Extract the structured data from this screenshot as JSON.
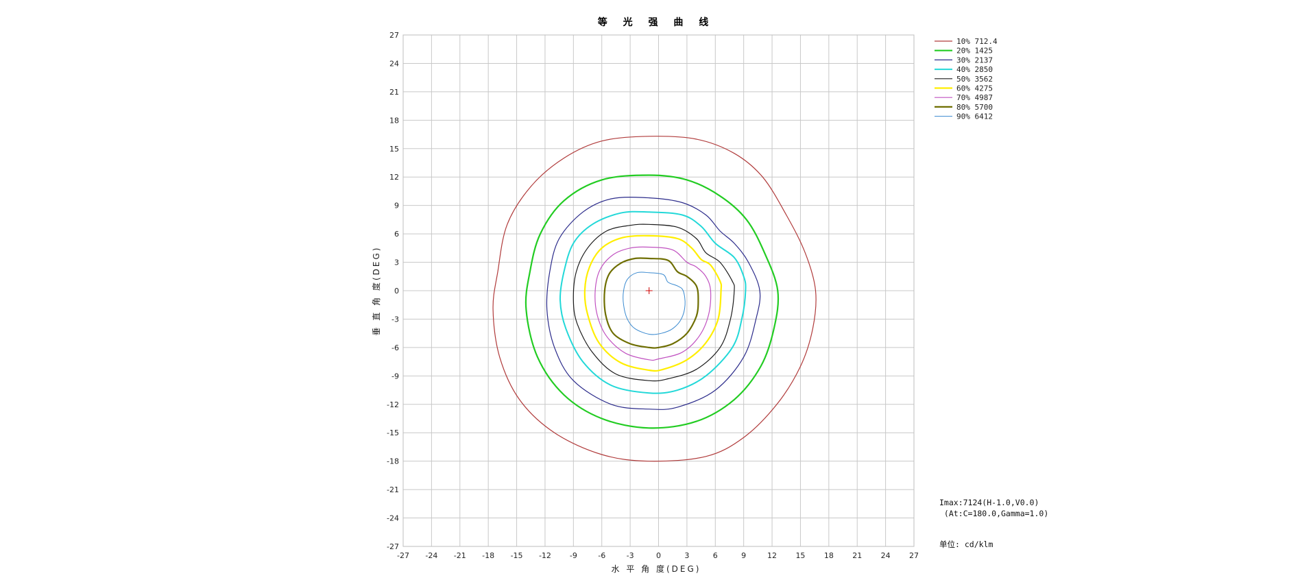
{
  "chart_data": {
    "type": "contour",
    "title": "等 光 强 曲 线",
    "xlabel": "水 平 角 度(DEG)",
    "ylabel": "垂 直 角 度(DEG)",
    "xlim": [
      -27,
      27
    ],
    "ylim": [
      -27,
      27
    ],
    "ticks": [
      -27,
      -24,
      -21,
      -18,
      -15,
      -12,
      -9,
      -6,
      -3,
      0,
      3,
      6,
      9,
      12,
      15,
      18,
      21,
      24,
      27
    ],
    "grid": true,
    "legend_position": "top-right",
    "center": {
      "x": -1.0,
      "y": 0.0,
      "marker": "+",
      "color": "#cc0000"
    },
    "series": [
      {
        "name": "10% 712.4",
        "color": "#b03a3a",
        "width": 1.2,
        "points": [
          [
            -1,
            16.3
          ],
          [
            4,
            16
          ],
          [
            8,
            14.5
          ],
          [
            11,
            12
          ],
          [
            13.5,
            8
          ],
          [
            15.5,
            4
          ],
          [
            16.6,
            0
          ],
          [
            16.3,
            -4
          ],
          [
            15,
            -8
          ],
          [
            12.5,
            -12
          ],
          [
            9,
            -15.5
          ],
          [
            5,
            -17.5
          ],
          [
            -1,
            -18
          ],
          [
            -6,
            -17.3
          ],
          [
            -11,
            -15
          ],
          [
            -14.7,
            -11.5
          ],
          [
            -16.8,
            -7
          ],
          [
            -17.5,
            -2
          ],
          [
            -17,
            2
          ],
          [
            -16,
            7
          ],
          [
            -13.5,
            11
          ],
          [
            -10,
            14
          ],
          [
            -6,
            15.8
          ]
        ]
      },
      {
        "name": "20% 1425",
        "color": "#22cc22",
        "width": 2.2,
        "points": [
          [
            -1,
            12.2
          ],
          [
            3,
            11.7
          ],
          [
            6.5,
            10
          ],
          [
            9.3,
            7.5
          ],
          [
            11.2,
            4
          ],
          [
            12.6,
            0
          ],
          [
            12.2,
            -4
          ],
          [
            10.8,
            -8
          ],
          [
            8,
            -11.5
          ],
          [
            4,
            -13.8
          ],
          [
            -1,
            -14.5
          ],
          [
            -6,
            -13.5
          ],
          [
            -10,
            -11
          ],
          [
            -12.8,
            -7
          ],
          [
            -14,
            -2
          ],
          [
            -13.6,
            2
          ],
          [
            -12.5,
            6
          ],
          [
            -10,
            9.5
          ],
          [
            -6,
            11.7
          ]
        ]
      },
      {
        "name": "30% 2137",
        "color": "#2a2a8a",
        "width": 1.2,
        "points": [
          [
            -1,
            9.8
          ],
          [
            2.5,
            9.3
          ],
          [
            5,
            8
          ],
          [
            6.5,
            6.3
          ],
          [
            8,
            5
          ],
          [
            9.5,
            3
          ],
          [
            10.7,
            0
          ],
          [
            10.3,
            -3
          ],
          [
            9,
            -7
          ],
          [
            6,
            -10.5
          ],
          [
            2,
            -12.3
          ],
          [
            -1,
            -12.5
          ],
          [
            -5,
            -12
          ],
          [
            -9,
            -9.5
          ],
          [
            -11,
            -6
          ],
          [
            -11.8,
            -2
          ],
          [
            -11.5,
            2
          ],
          [
            -10.5,
            5.5
          ],
          [
            -8,
            8.3
          ],
          [
            -5,
            9.7
          ]
        ]
      },
      {
        "name": "40% 2850",
        "color": "#22d8d8",
        "width": 2.0,
        "points": [
          [
            -1,
            8.3
          ],
          [
            2.5,
            8
          ],
          [
            4.5,
            6.8
          ],
          [
            6,
            5
          ],
          [
            8,
            3.5
          ],
          [
            9,
            1.5
          ],
          [
            9.2,
            0
          ],
          [
            8.8,
            -3
          ],
          [
            7.8,
            -6
          ],
          [
            5,
            -9
          ],
          [
            2,
            -10.5
          ],
          [
            -1,
            -10.8
          ],
          [
            -5,
            -10
          ],
          [
            -8,
            -7.5
          ],
          [
            -9.8,
            -4
          ],
          [
            -10.4,
            -1
          ],
          [
            -10,
            2
          ],
          [
            -9,
            5
          ],
          [
            -7,
            7
          ],
          [
            -4,
            8.2
          ]
        ]
      },
      {
        "name": "50% 3562",
        "color": "#1a1a1a",
        "width": 1.2,
        "points": [
          [
            -1,
            7
          ],
          [
            2,
            6.7
          ],
          [
            4,
            5.5
          ],
          [
            5,
            4
          ],
          [
            6.5,
            3
          ],
          [
            7.8,
            1
          ],
          [
            8,
            0
          ],
          [
            7.6,
            -3
          ],
          [
            6.5,
            -6
          ],
          [
            4,
            -8.3
          ],
          [
            1,
            -9.3
          ],
          [
            -1,
            -9.5
          ],
          [
            -4.5,
            -8.8
          ],
          [
            -7,
            -6.5
          ],
          [
            -8.6,
            -3.5
          ],
          [
            -9,
            -1
          ],
          [
            -8.7,
            2
          ],
          [
            -7.5,
            4.5
          ],
          [
            -5.5,
            6.3
          ],
          [
            -3,
            6.9
          ]
        ]
      },
      {
        "name": "60% 4275",
        "color": "#ffee00",
        "width": 2.2,
        "points": [
          [
            -1,
            5.8
          ],
          [
            2,
            5.5
          ],
          [
            3.5,
            4.5
          ],
          [
            4.5,
            3.3
          ],
          [
            5.5,
            2.7
          ],
          [
            6.5,
            1
          ],
          [
            6.6,
            0
          ],
          [
            6.3,
            -3
          ],
          [
            5,
            -5.5
          ],
          [
            3,
            -7.3
          ],
          [
            0.5,
            -8.3
          ],
          [
            -1,
            -8.4
          ],
          [
            -4,
            -7.6
          ],
          [
            -6.3,
            -5.5
          ],
          [
            -7.5,
            -2.5
          ],
          [
            -7.8,
            0
          ],
          [
            -7.3,
            2.5
          ],
          [
            -6,
            4.5
          ],
          [
            -3.8,
            5.6
          ]
        ]
      },
      {
        "name": "70% 4987",
        "color": "#c050c0",
        "width": 1.2,
        "points": [
          [
            -1,
            4.6
          ],
          [
            1.5,
            4.3
          ],
          [
            3,
            3
          ],
          [
            4,
            2.5
          ],
          [
            5,
            1.5
          ],
          [
            5.5,
            0
          ],
          [
            5.3,
            -2.5
          ],
          [
            4.3,
            -4.8
          ],
          [
            2.5,
            -6.5
          ],
          [
            0,
            -7.2
          ],
          [
            -1,
            -7.3
          ],
          [
            -3.5,
            -6.6
          ],
          [
            -5.5,
            -4.8
          ],
          [
            -6.5,
            -2.5
          ],
          [
            -6.7,
            0
          ],
          [
            -6.2,
            2.2
          ],
          [
            -4.8,
            3.8
          ],
          [
            -3,
            4.5
          ]
        ]
      },
      {
        "name": "80% 5700",
        "color": "#6e6e00",
        "width": 2.2,
        "points": [
          [
            -1,
            3.4
          ],
          [
            1,
            3.2
          ],
          [
            2,
            2
          ],
          [
            3,
            1.5
          ],
          [
            4,
            0.5
          ],
          [
            4.2,
            -1
          ],
          [
            4,
            -2.7
          ],
          [
            3,
            -4.5
          ],
          [
            1.5,
            -5.6
          ],
          [
            0,
            -6
          ],
          [
            -1,
            -6
          ],
          [
            -3,
            -5.6
          ],
          [
            -4.8,
            -4.5
          ],
          [
            -5.6,
            -2.5
          ],
          [
            -5.7,
            0
          ],
          [
            -5.2,
            1.8
          ],
          [
            -4,
            2.9
          ],
          [
            -2.5,
            3.4
          ]
        ]
      },
      {
        "name": "90% 6412",
        "color": "#3a8ad0",
        "width": 1.0,
        "points": [
          [
            -1,
            1.9
          ],
          [
            0.5,
            1.7
          ],
          [
            1,
            0.9
          ],
          [
            2,
            0.5
          ],
          [
            2.6,
            0
          ],
          [
            2.8,
            -1.5
          ],
          [
            2.4,
            -3
          ],
          [
            1.5,
            -4
          ],
          [
            0.3,
            -4.5
          ],
          [
            -1,
            -4.6
          ],
          [
            -2.5,
            -4
          ],
          [
            -3.3,
            -3
          ],
          [
            -3.7,
            -1.5
          ],
          [
            -3.7,
            0
          ],
          [
            -3.3,
            1.2
          ],
          [
            -2.3,
            1.9
          ]
        ]
      }
    ]
  },
  "info": {
    "imax": "Imax:7124(H-1.0,V0.0)",
    "at": " (At:C=180.0,Gamma=1.0)",
    "unit": "单位: cd/klm"
  }
}
